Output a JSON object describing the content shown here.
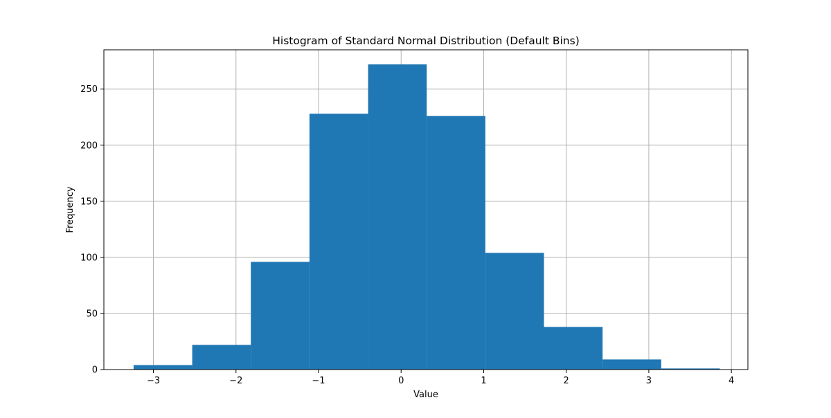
{
  "chart_data": {
    "type": "bar",
    "title": "Histogram of Standard Normal Distribution (Default Bins)",
    "xlabel": "Value",
    "ylabel": "Frequency",
    "bar_color": "#1f77b4",
    "grid_color": "#b0b0b0",
    "grid": true,
    "xlim": [
      -3.6,
      4.2
    ],
    "ylim": [
      0,
      285
    ],
    "xticks": [
      -3,
      -2,
      -1,
      0,
      1,
      2,
      3,
      4
    ],
    "xtick_labels": [
      "−3",
      "−2",
      "−1",
      "0",
      "1",
      "2",
      "3",
      "4"
    ],
    "yticks": [
      0,
      50,
      100,
      150,
      200,
      250
    ],
    "ytick_labels": [
      "0",
      "50",
      "100",
      "150",
      "200",
      "250"
    ],
    "bins": [
      {
        "x0": -3.24,
        "x1": -2.53,
        "count": 4
      },
      {
        "x0": -2.53,
        "x1": -1.82,
        "count": 22
      },
      {
        "x0": -1.82,
        "x1": -1.11,
        "count": 96
      },
      {
        "x0": -1.11,
        "x1": -0.4,
        "count": 228
      },
      {
        "x0": -0.4,
        "x1": 0.31,
        "count": 272
      },
      {
        "x0": 0.31,
        "x1": 1.02,
        "count": 226
      },
      {
        "x0": 1.02,
        "x1": 1.73,
        "count": 104
      },
      {
        "x0": 1.73,
        "x1": 2.44,
        "count": 38
      },
      {
        "x0": 2.44,
        "x1": 3.15,
        "count": 9
      },
      {
        "x0": 3.15,
        "x1": 3.86,
        "count": 1
      }
    ]
  }
}
